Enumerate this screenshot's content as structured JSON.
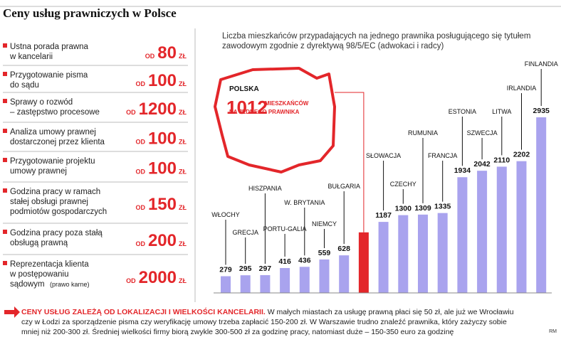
{
  "title": "Ceny usług prawniczych w Polsce",
  "services": {
    "price_prefix": "OD",
    "price_unit": "ZŁ",
    "items": [
      {
        "label": [
          "Ustna porada prawna",
          "w kancelarii"
        ],
        "price": 80
      },
      {
        "label": [
          "Przygotowanie pisma",
          "do sądu"
        ],
        "price": 100
      },
      {
        "label": [
          "Sprawy o rozwód",
          "– zastępstwo procesowe"
        ],
        "price": 1200
      },
      {
        "label": [
          "Analiza umowy prawnej",
          "dostarczonej przez klienta"
        ],
        "price": 100
      },
      {
        "label": [
          "Przygotowanie projektu",
          "umowy prawnej"
        ],
        "price": 100
      },
      {
        "label": [
          "Godzina pracy w ramach",
          "stałej obsługi prawnej",
          "podmiotów gospodarczych"
        ],
        "price": 150
      },
      {
        "label": [
          "Godzina pracy poza stałą",
          "obsługą prawną"
        ],
        "price": 200
      },
      {
        "label": [
          "Reprezentacja klienta",
          "w postępowaniu",
          "sądowym"
        ],
        "note": "(prawo karne)",
        "price": 2000
      }
    ]
  },
  "chart_data": {
    "type": "bar",
    "title": [
      "Liczba mieszkańców przypadających na jednego prawnika posługującego się tytułem",
      "zawodowym zgodnie z dyrektywą 98/5/EC (adwokaci i radcy)"
    ],
    "categories": [
      "WŁOCHY",
      "GRECJA",
      "HISZPANIA",
      "PORTU-GALIA",
      "W. BRYTANIA",
      "NIEMCY",
      "BUŁGARIA",
      "POLSKA",
      "SŁOWACJA",
      "CZECHY",
      "RUMUNIA",
      "FRANCJA",
      "ESTONIA",
      "SZWECJA",
      "LITWA",
      "IRLANDIA",
      "FINLANDIA"
    ],
    "values": [
      279,
      295,
      297,
      416,
      436,
      559,
      628,
      1012,
      1187,
      1300,
      1309,
      1335,
      1934,
      2042,
      2110,
      2202,
      2935
    ],
    "colors": [
      "#a9a3ee",
      "#a9a3ee",
      "#a9a3ee",
      "#a9a3ee",
      "#a9a3ee",
      "#a9a3ee",
      "#a9a3ee",
      "#e3262a",
      "#a9a3ee",
      "#a9a3ee",
      "#a9a3ee",
      "#a9a3ee",
      "#a9a3ee",
      "#a9a3ee",
      "#a9a3ee",
      "#a9a3ee",
      "#a9a3ee"
    ],
    "annotation": [
      "MIESZKAŃCÓW",
      "NA JEDNEGO PRAWNIKA"
    ]
  },
  "note": {
    "head": "CENY USŁUG ZALEŻĄ OD LOKALIZACJI I WIELKOŚCI KANCELARII.",
    "body": "W małych miastach za usługę prawną płaci się 50 zł, ale już we Wrocławiu czy w Łodzi za sporządzenie pisma czy weryfikację umowy trzeba zapłacić 150-200 zł. W Warszawie trudno znaleźć prawnika, który zażyczy sobie mniej niż 200-300 zł. Średniej wielkości firmy biorą zwykle 300-500 zł za godzinę pracy, natomiast duże – 150-350 euro za godzinę"
  },
  "credit": "RM"
}
